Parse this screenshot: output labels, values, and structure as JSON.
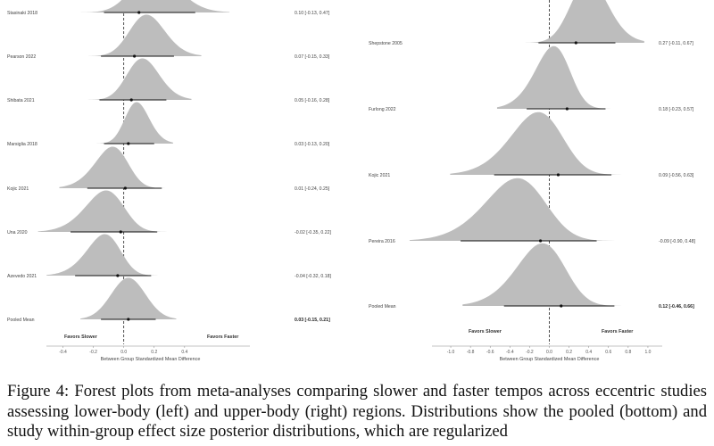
{
  "caption": "Figure 4: Forest plots from meta-analyses comparing slower and faster tempos across eccentric studies assessing lower-body (left) and upper-body (right) regions. Distributions show the pooled (bottom) and study within-group effect size posterior distributions, which are regularized",
  "chart_data": [
    {
      "type": "forest",
      "panel": "left",
      "xlabel": "Between Group Standardized Mean Difference",
      "xlim": [
        -0.45,
        0.8
      ],
      "ticks": [
        "-0.4",
        "-0.2",
        "0.0",
        "0.2",
        "0.4"
      ],
      "tick_values": [
        -0.4,
        -0.2,
        0.0,
        0.2,
        0.4
      ],
      "favors_left": "Favors Slower",
      "favors_right": "Favors Faster",
      "studies": [
        {
          "label": "Stasinaki 2018",
          "est": 0.1,
          "lo": -0.13,
          "hi": 0.47,
          "ci_text": "0.10 [-0.13, 0.47]"
        },
        {
          "label": "Pearson 2022",
          "est": 0.07,
          "lo": -0.15,
          "hi": 0.33,
          "ci_text": "0.07 [-0.15, 0.33]"
        },
        {
          "label": "Shibata 2021",
          "est": 0.05,
          "lo": -0.16,
          "hi": 0.28,
          "ci_text": "0.05 [-0.16, 0.28]"
        },
        {
          "label": "Marsiglia 2018",
          "est": 0.03,
          "lo": -0.13,
          "hi": 0.2,
          "ci_text": "0.03 [-0.13, 0.20]"
        },
        {
          "label": "Kojic 2021",
          "est": 0.01,
          "lo": -0.24,
          "hi": 0.25,
          "ci_text": "0.01 [-0.24, 0.25]"
        },
        {
          "label": "Una 2020",
          "est": -0.02,
          "lo": -0.35,
          "hi": 0.22,
          "ci_text": "-0.02 [-0.35, 0.22]"
        },
        {
          "label": "Azevedo 2021",
          "est": -0.04,
          "lo": -0.32,
          "hi": 0.18,
          "ci_text": "-0.04 [-0.32, 0.18]"
        },
        {
          "label": "Pooled Mean",
          "est": 0.03,
          "lo": -0.15,
          "hi": 0.21,
          "ci_text": "0.03 [-0.15, 0.21]",
          "pooled": true
        }
      ]
    },
    {
      "type": "forest",
      "panel": "right",
      "xlabel": "Between Group Standardized Mean Difference",
      "xlim": [
        -1.1,
        1.1
      ],
      "ticks": [
        "-1.0",
        "-0.8",
        "-0.6",
        "-0.4",
        "-0.2",
        "0.0",
        "0.2",
        "0.4",
        "0.6",
        "0.8",
        "1.0"
      ],
      "tick_values": [
        -1.0,
        -0.8,
        -0.6,
        -0.4,
        -0.2,
        0.0,
        0.2,
        0.4,
        0.6,
        0.8,
        1.0
      ],
      "favors_left": "Favors Slower",
      "favors_right": "Favors Faster",
      "studies": [
        {
          "label": "Shepstone 2005",
          "est": 0.27,
          "lo": -0.11,
          "hi": 0.67,
          "ci_text": "0.27 [-0.11, 0.67]"
        },
        {
          "label": "Furlong 2022",
          "est": 0.18,
          "lo": -0.23,
          "hi": 0.57,
          "ci_text": "0.18 [-0.23, 0.57]"
        },
        {
          "label": "Kojic 2021",
          "est": 0.09,
          "lo": -0.56,
          "hi": 0.63,
          "ci_text": "0.09 [-0.56, 0.63]"
        },
        {
          "label": "Pereira 2016",
          "est": -0.09,
          "lo": -0.9,
          "hi": 0.48,
          "ci_text": "-0.09 [-0.90, 0.48]"
        },
        {
          "label": "Pooled Mean",
          "est": 0.12,
          "lo": -0.46,
          "hi": 0.66,
          "ci_text": "0.12 [-0.46, 0.66]",
          "pooled": true
        }
      ]
    }
  ]
}
